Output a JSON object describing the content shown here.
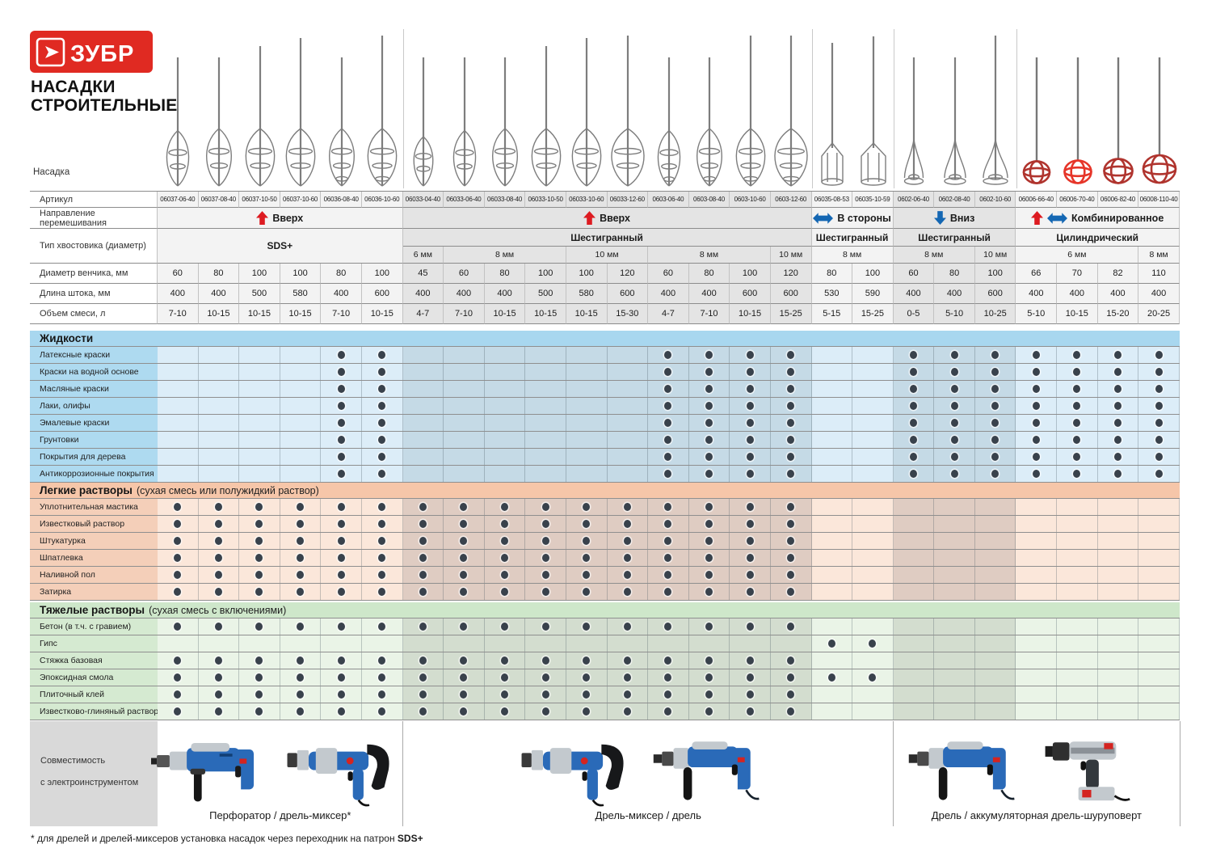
{
  "brand": {
    "logo_text": "ЗУБР",
    "title_line1": "НАСАДКИ",
    "title_line2": "СТРОИТЕЛЬНЫЕ"
  },
  "top_label": "Насадка",
  "colors": {
    "brand_red": "#e02a22",
    "arrow_red": "#dd1b21",
    "arrow_blue": "#1467b3",
    "liquids_bar": "#a8d7ef",
    "liquids_label": "#aedaf0",
    "liquids_light": "#dcedf8",
    "liquids_dark": "#c5dae6",
    "light_bar": "#f6c6a9",
    "light_label": "#f4cfb9",
    "light_light": "#fbe7da",
    "light_dark": "#dfccc2",
    "heavy_bar": "#cee7ca",
    "heavy_label": "#d5ead1",
    "heavy_light": "#eaf4e7",
    "heavy_dark": "#d3ddcf",
    "spec_light": "#f3f3f3",
    "spec_dark": "#e4e4e4",
    "dot": "#39424c"
  },
  "row_labels": {
    "articul": "Артикул",
    "direction": "Направление перемешивания",
    "shank": "Тип хвостовика (диаметр)",
    "diameter": "Диаметр венчика, мм",
    "length": "Длина штока, мм",
    "volume": "Объем смеси, л"
  },
  "groups": [
    {
      "direction": "Вверх",
      "arrows": [
        "up"
      ],
      "shank": "SDS+",
      "span": 6,
      "mm": []
    },
    {
      "direction": "Вверх",
      "arrows": [
        "up"
      ],
      "shank": "Шестигранный",
      "span": 10,
      "mm": [
        {
          "label": "6 мм",
          "span": 1
        },
        {
          "label": "8 мм",
          "span": 3
        },
        {
          "label": "10 мм",
          "span": 2
        },
        {
          "label": "8 мм",
          "span": 3
        },
        {
          "label": "10 мм",
          "span": 1
        }
      ]
    },
    {
      "direction": "В стороны",
      "arrows": [
        "lr"
      ],
      "shank": "Шестигранный",
      "span": 2,
      "mm": [
        {
          "label": "8 мм",
          "span": 2
        }
      ]
    },
    {
      "direction": "Вниз",
      "arrows": [
        "down"
      ],
      "shank": "Шестигранный",
      "span": 3,
      "mm": [
        {
          "label": "8 мм",
          "span": 2
        },
        {
          "label": "10 мм",
          "span": 1
        }
      ]
    },
    {
      "direction": "Комбинированное",
      "arrows": [
        "up",
        "lr"
      ],
      "shank": "Цилиндрический",
      "span": 4,
      "mm": [
        {
          "label": "6 мм",
          "span": 3
        },
        {
          "label": "8 мм",
          "span": 1
        }
      ]
    }
  ],
  "columns": [
    {
      "article": "06037-06-40",
      "diameter": "60",
      "length": "400",
      "volume": "7-10",
      "mixer": "spiral"
    },
    {
      "article": "06037-08-40",
      "diameter": "80",
      "length": "400",
      "volume": "10-15",
      "mixer": "spiral"
    },
    {
      "article": "06037-10-50",
      "diameter": "100",
      "length": "500",
      "volume": "10-15",
      "mixer": "spiral"
    },
    {
      "article": "06037-10-60",
      "diameter": "100",
      "length": "580",
      "volume": "10-15",
      "mixer": "spiral"
    },
    {
      "article": "06036-08-40",
      "diameter": "80",
      "length": "400",
      "volume": "7-10",
      "mixer": "spiral2"
    },
    {
      "article": "06036-10-60",
      "diameter": "100",
      "length": "600",
      "volume": "10-15",
      "mixer": "spiral2"
    },
    {
      "article": "06033-04-40",
      "diameter": "45",
      "length": "400",
      "volume": "4-7",
      "mixer": "spiral"
    },
    {
      "article": "06033-06-40",
      "diameter": "60",
      "length": "400",
      "volume": "7-10",
      "mixer": "spiral"
    },
    {
      "article": "06033-08-40",
      "diameter": "80",
      "length": "400",
      "volume": "10-15",
      "mixer": "spiral"
    },
    {
      "article": "06033-10-50",
      "diameter": "100",
      "length": "500",
      "volume": "10-15",
      "mixer": "spiral"
    },
    {
      "article": "06033-10-60",
      "diameter": "100",
      "length": "580",
      "volume": "10-15",
      "mixer": "spiral"
    },
    {
      "article": "06033-12-60",
      "diameter": "120",
      "length": "600",
      "volume": "15-30",
      "mixer": "spiral"
    },
    {
      "article": "0603-06-40",
      "diameter": "60",
      "length": "400",
      "volume": "4-7",
      "mixer": "spiral2"
    },
    {
      "article": "0603-08-40",
      "diameter": "80",
      "length": "400",
      "volume": "7-10",
      "mixer": "spiral2"
    },
    {
      "article": "0603-10-60",
      "diameter": "100",
      "length": "600",
      "volume": "10-15",
      "mixer": "spiral2"
    },
    {
      "article": "0603-12-60",
      "diameter": "120",
      "length": "600",
      "volume": "15-25",
      "mixer": "spiral2"
    },
    {
      "article": "06035-08-53",
      "diameter": "80",
      "length": "530",
      "volume": "5-15",
      "mixer": "cage"
    },
    {
      "article": "06035-10-59",
      "diameter": "100",
      "length": "590",
      "volume": "15-25",
      "mixer": "cage"
    },
    {
      "article": "0602-06-40",
      "diameter": "60",
      "length": "400",
      "volume": "0-5",
      "mixer": "cone"
    },
    {
      "article": "0602-08-40",
      "diameter": "80",
      "length": "400",
      "volume": "5-10",
      "mixer": "cone"
    },
    {
      "article": "0602-10-60",
      "diameter": "100",
      "length": "600",
      "volume": "10-25",
      "mixer": "cone"
    },
    {
      "article": "06006-66-40",
      "diameter": "66",
      "length": "400",
      "volume": "5-10",
      "mixer": "ball"
    },
    {
      "article": "06006-70-40",
      "diameter": "70",
      "length": "400",
      "volume": "10-15",
      "mixer": "ball-bright"
    },
    {
      "article": "06006-82-40",
      "diameter": "82",
      "length": "400",
      "volume": "15-20",
      "mixer": "ball"
    },
    {
      "article": "06008-110-40",
      "diameter": "110",
      "length": "400",
      "volume": "20-25",
      "mixer": "ball"
    }
  ],
  "sections": [
    {
      "title": "Жидкости",
      "subtitle": "",
      "theme": "liquids",
      "rows": [
        {
          "label": "Латексные краски",
          "dots": [
            0,
            0,
            0,
            0,
            1,
            1,
            0,
            0,
            0,
            0,
            0,
            0,
            1,
            1,
            1,
            1,
            0,
            0,
            1,
            1,
            1,
            1,
            1,
            1,
            1
          ]
        },
        {
          "label": "Краски на водной основе",
          "dots": [
            0,
            0,
            0,
            0,
            1,
            1,
            0,
            0,
            0,
            0,
            0,
            0,
            1,
            1,
            1,
            1,
            0,
            0,
            1,
            1,
            1,
            1,
            1,
            1,
            1
          ]
        },
        {
          "label": "Масляные краски",
          "dots": [
            0,
            0,
            0,
            0,
            1,
            1,
            0,
            0,
            0,
            0,
            0,
            0,
            1,
            1,
            1,
            1,
            0,
            0,
            1,
            1,
            1,
            1,
            1,
            1,
            1
          ]
        },
        {
          "label": "Лаки, олифы",
          "dots": [
            0,
            0,
            0,
            0,
            1,
            1,
            0,
            0,
            0,
            0,
            0,
            0,
            1,
            1,
            1,
            1,
            0,
            0,
            1,
            1,
            1,
            1,
            1,
            1,
            1
          ]
        },
        {
          "label": "Эмалевые краски",
          "dots": [
            0,
            0,
            0,
            0,
            1,
            1,
            0,
            0,
            0,
            0,
            0,
            0,
            1,
            1,
            1,
            1,
            0,
            0,
            1,
            1,
            1,
            1,
            1,
            1,
            1
          ]
        },
        {
          "label": "Грунтовки",
          "dots": [
            0,
            0,
            0,
            0,
            1,
            1,
            0,
            0,
            0,
            0,
            0,
            0,
            1,
            1,
            1,
            1,
            0,
            0,
            1,
            1,
            1,
            1,
            1,
            1,
            1
          ]
        },
        {
          "label": "Покрытия для дерева",
          "dots": [
            0,
            0,
            0,
            0,
            1,
            1,
            0,
            0,
            0,
            0,
            0,
            0,
            1,
            1,
            1,
            1,
            0,
            0,
            1,
            1,
            1,
            1,
            1,
            1,
            1
          ]
        },
        {
          "label": "Антикоррозионные покрытия",
          "dots": [
            0,
            0,
            0,
            0,
            1,
            1,
            0,
            0,
            0,
            0,
            0,
            0,
            1,
            1,
            1,
            1,
            0,
            0,
            1,
            1,
            1,
            1,
            1,
            1,
            1
          ]
        }
      ]
    },
    {
      "title": "Легкие растворы",
      "subtitle": "(сухая смесь или полужидкий раствор)",
      "theme": "light",
      "rows": [
        {
          "label": "Уплотнительная мастика",
          "dots": [
            1,
            1,
            1,
            1,
            1,
            1,
            1,
            1,
            1,
            1,
            1,
            1,
            1,
            1,
            1,
            1,
            0,
            0,
            0,
            0,
            0,
            0,
            0,
            0,
            0
          ]
        },
        {
          "label": "Известковый раствор",
          "dots": [
            1,
            1,
            1,
            1,
            1,
            1,
            1,
            1,
            1,
            1,
            1,
            1,
            1,
            1,
            1,
            1,
            0,
            0,
            0,
            0,
            0,
            0,
            0,
            0,
            0
          ]
        },
        {
          "label": "Штукатурка",
          "dots": [
            1,
            1,
            1,
            1,
            1,
            1,
            1,
            1,
            1,
            1,
            1,
            1,
            1,
            1,
            1,
            1,
            0,
            0,
            0,
            0,
            0,
            0,
            0,
            0,
            0
          ]
        },
        {
          "label": "Шпатлевка",
          "dots": [
            1,
            1,
            1,
            1,
            1,
            1,
            1,
            1,
            1,
            1,
            1,
            1,
            1,
            1,
            1,
            1,
            0,
            0,
            0,
            0,
            0,
            0,
            0,
            0,
            0
          ]
        },
        {
          "label": "Наливной пол",
          "dots": [
            1,
            1,
            1,
            1,
            1,
            1,
            1,
            1,
            1,
            1,
            1,
            1,
            1,
            1,
            1,
            1,
            0,
            0,
            0,
            0,
            0,
            0,
            0,
            0,
            0
          ]
        },
        {
          "label": "Затирка",
          "dots": [
            1,
            1,
            1,
            1,
            1,
            1,
            1,
            1,
            1,
            1,
            1,
            1,
            1,
            1,
            1,
            1,
            0,
            0,
            0,
            0,
            0,
            0,
            0,
            0,
            0
          ]
        }
      ]
    },
    {
      "title": "Тяжелые растворы",
      "subtitle": "(сухая смесь с включениями)",
      "theme": "heavy",
      "rows": [
        {
          "label": "Бетон (в т.ч. с гравием)",
          "dots": [
            1,
            1,
            1,
            1,
            1,
            1,
            1,
            1,
            1,
            1,
            1,
            1,
            1,
            1,
            1,
            1,
            0,
            0,
            0,
            0,
            0,
            0,
            0,
            0,
            0
          ]
        },
        {
          "label": "Гипс",
          "dots": [
            0,
            0,
            0,
            0,
            0,
            0,
            0,
            0,
            0,
            0,
            0,
            0,
            0,
            0,
            0,
            0,
            1,
            1,
            0,
            0,
            0,
            0,
            0,
            0,
            0
          ]
        },
        {
          "label": "Стяжка базовая",
          "dots": [
            1,
            1,
            1,
            1,
            1,
            1,
            1,
            1,
            1,
            1,
            1,
            1,
            1,
            1,
            1,
            1,
            0,
            0,
            0,
            0,
            0,
            0,
            0,
            0,
            0
          ]
        },
        {
          "label": "Эпоксидная смола",
          "dots": [
            1,
            1,
            1,
            1,
            1,
            1,
            1,
            1,
            1,
            1,
            1,
            1,
            1,
            1,
            1,
            1,
            1,
            1,
            0,
            0,
            0,
            0,
            0,
            0,
            0
          ]
        },
        {
          "label": "Плиточный клей",
          "dots": [
            1,
            1,
            1,
            1,
            1,
            1,
            1,
            1,
            1,
            1,
            1,
            1,
            1,
            1,
            1,
            1,
            0,
            0,
            0,
            0,
            0,
            0,
            0,
            0,
            0
          ]
        },
        {
          "label": "Известково-глиняный раствор",
          "dots": [
            1,
            1,
            1,
            1,
            1,
            1,
            1,
            1,
            1,
            1,
            1,
            1,
            1,
            1,
            1,
            1,
            0,
            0,
            0,
            0,
            0,
            0,
            0,
            0,
            0
          ]
        }
      ]
    }
  ],
  "compatibility": {
    "label_line1": "Совместимость",
    "label_line2": "с электроинструментом",
    "zones": [
      {
        "label": "Перфоратор / дрель-миксер*",
        "tools": [
          "perforator",
          "mixerdrill"
        ]
      },
      {
        "label": "Дрель-миксер / дрель",
        "tools": [
          "mixerdrill",
          "drill"
        ]
      },
      {
        "label": "Дрель / аккумуляторная дрель-шуруповерт",
        "tools": [
          "drill",
          "cordless"
        ]
      }
    ]
  },
  "footnote": {
    "text": "* для дрелей и дрелей-миксеров установка насадок через переходник на патрон ",
    "bold": "SDS+"
  }
}
